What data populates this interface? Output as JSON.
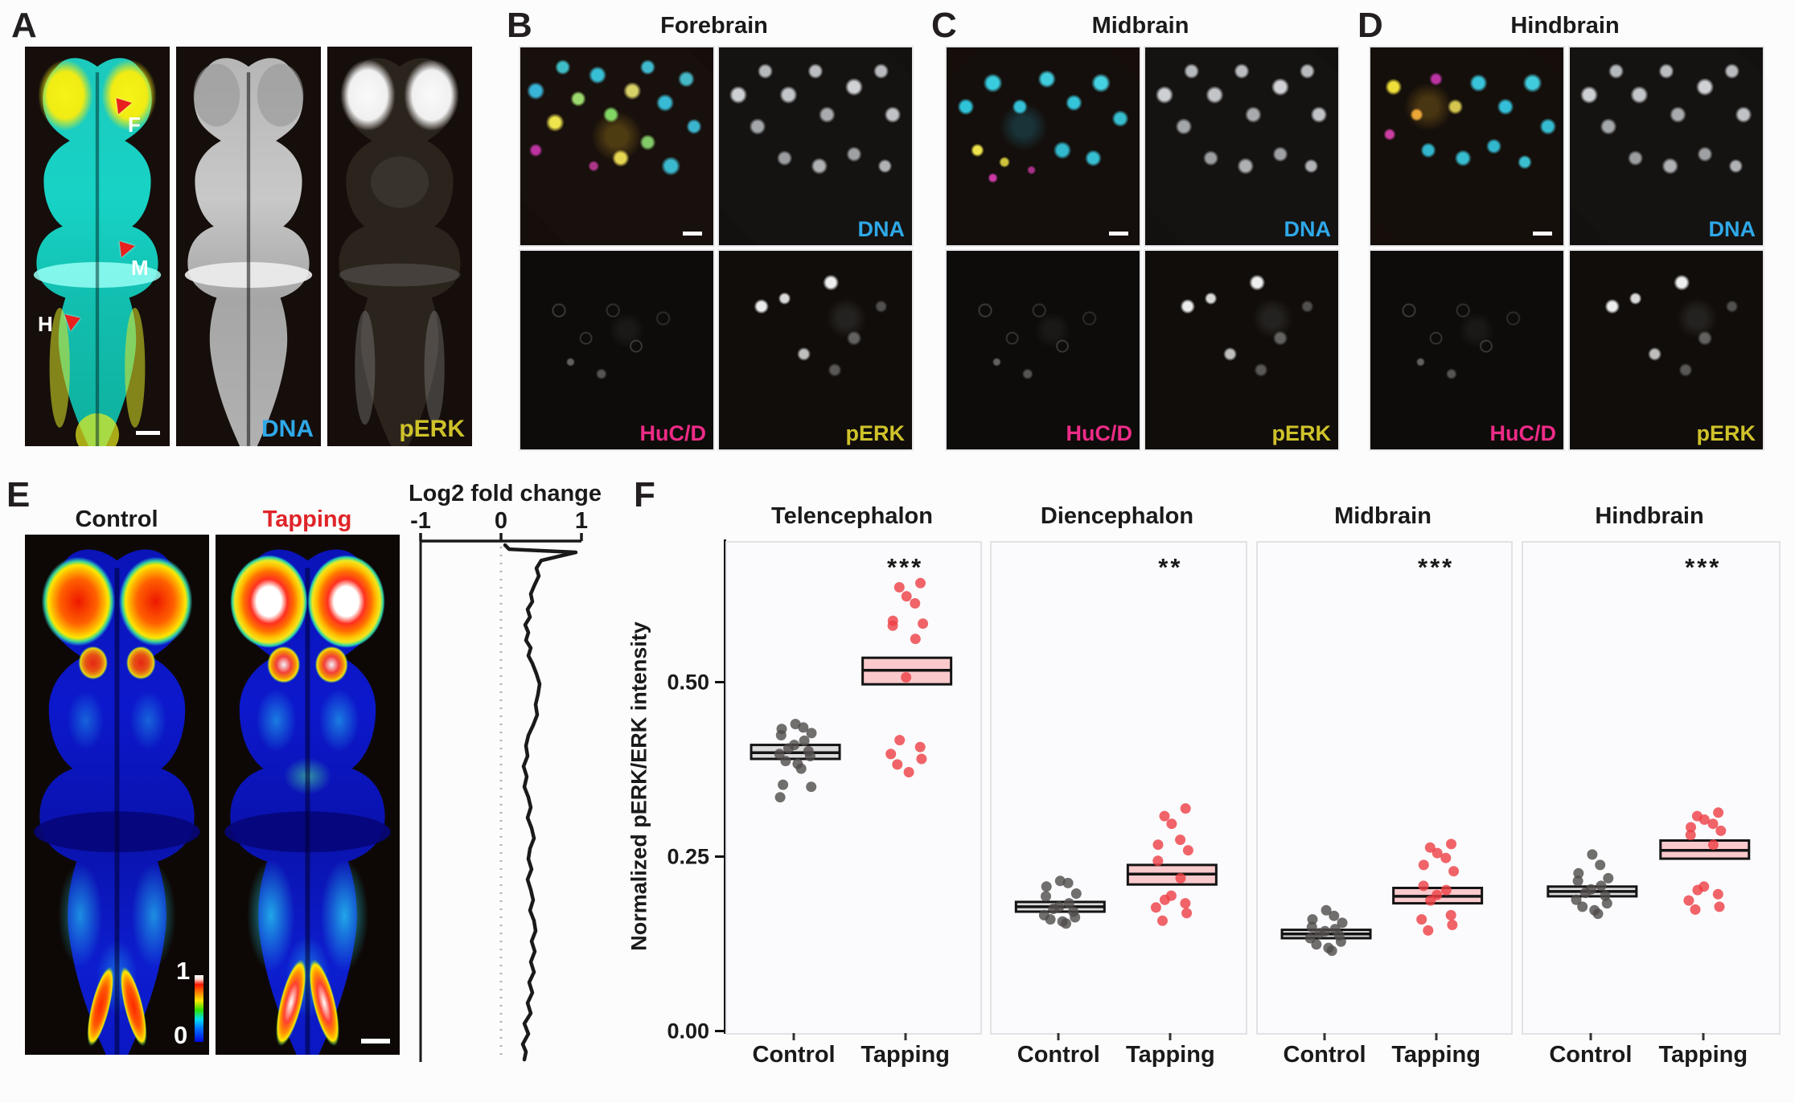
{
  "colors": {
    "tapping_red": "#e02428",
    "dna_cyan": "#2fa8e8",
    "hucd_magenta": "#ee2b87",
    "perk_yellow": "#cfc22a",
    "control_box_fill": "#dcdcdc",
    "control_point": "#4f4b4a",
    "tapping_box_fill": "#f9c9cc",
    "tapping_point": "#ee3e44",
    "box_border": "#141414",
    "annotation_arrow_red": "#e8201e"
  },
  "panel_a": {
    "label": "A",
    "annotations": {
      "f": "F",
      "m": "M",
      "h": "H"
    },
    "dna_label": "DNA",
    "perk_label": "pERK"
  },
  "panel_b": {
    "label": "B",
    "title": "Forebrain",
    "dna_label": "DNA",
    "hucd_label": "HuC/D",
    "perk_label": "pERK"
  },
  "panel_c": {
    "label": "C",
    "title": "Midbrain",
    "dna_label": "DNA",
    "hucd_label": "HuC/D",
    "perk_label": "pERK"
  },
  "panel_d": {
    "label": "D",
    "title": "Hindbrain",
    "dna_label": "DNA",
    "hucd_label": "HuC/D",
    "perk_label": "pERK"
  },
  "panel_e": {
    "label": "E",
    "control_label": "Control",
    "tapping_label": "Tapping",
    "colorbar_max": "1",
    "colorbar_min": "0",
    "log2_title": "Log2 fold change",
    "log2_ticks": [
      "-1",
      "0",
      "1"
    ]
  },
  "panel_f": {
    "label": "F",
    "y_axis_label": "Normalized pERK/ERK intensity",
    "y_ticks": [
      "0.50",
      "0.25",
      "0.00"
    ],
    "x_tick_labels": [
      "Control",
      "Tapping"
    ]
  },
  "chart_data": [
    {
      "type": "line",
      "title": "Log2 fold change",
      "orientation": "vertical-profile-along-brain-axis",
      "xlim": [
        -1,
        1
      ],
      "x_ticks": [
        -1,
        0,
        1
      ],
      "zero_reference_line": "dashed",
      "points": [
        [
          0,
          0.05
        ],
        [
          0.008,
          0.1
        ],
        [
          0.014,
          0.93
        ],
        [
          0.03,
          0.5
        ],
        [
          0.045,
          0.44
        ],
        [
          0.06,
          0.47
        ],
        [
          0.08,
          0.41
        ],
        [
          0.095,
          0.37
        ],
        [
          0.11,
          0.39
        ],
        [
          0.125,
          0.33
        ],
        [
          0.14,
          0.36
        ],
        [
          0.155,
          0.3
        ],
        [
          0.17,
          0.34
        ],
        [
          0.185,
          0.31
        ],
        [
          0.2,
          0.37
        ],
        [
          0.215,
          0.34
        ],
        [
          0.23,
          0.39
        ],
        [
          0.25,
          0.44
        ],
        [
          0.27,
          0.48
        ],
        [
          0.29,
          0.46
        ],
        [
          0.31,
          0.43
        ],
        [
          0.33,
          0.45
        ],
        [
          0.35,
          0.4
        ],
        [
          0.37,
          0.34
        ],
        [
          0.39,
          0.31
        ],
        [
          0.41,
          0.33
        ],
        [
          0.43,
          0.28
        ],
        [
          0.45,
          0.32
        ],
        [
          0.47,
          0.29
        ],
        [
          0.49,
          0.34
        ],
        [
          0.51,
          0.37
        ],
        [
          0.53,
          0.33
        ],
        [
          0.55,
          0.38
        ],
        [
          0.57,
          0.41
        ],
        [
          0.59,
          0.36
        ],
        [
          0.61,
          0.34
        ],
        [
          0.63,
          0.38
        ],
        [
          0.65,
          0.33
        ],
        [
          0.67,
          0.37
        ],
        [
          0.69,
          0.4
        ],
        [
          0.71,
          0.36
        ],
        [
          0.73,
          0.41
        ],
        [
          0.75,
          0.43
        ],
        [
          0.77,
          0.38
        ],
        [
          0.79,
          0.42
        ],
        [
          0.81,
          0.37
        ],
        [
          0.83,
          0.41
        ],
        [
          0.85,
          0.35
        ],
        [
          0.87,
          0.39
        ],
        [
          0.89,
          0.33
        ],
        [
          0.91,
          0.37
        ],
        [
          0.93,
          0.29
        ],
        [
          0.95,
          0.34
        ],
        [
          0.97,
          0.27
        ],
        [
          0.985,
          0.31
        ],
        [
          1,
          0.29
        ]
      ]
    },
    {
      "type": "box-scatter",
      "ylabel": "Normalized pERK/ERK intensity",
      "ylim": [
        0,
        0.7
      ],
      "y_ticks": [
        0.0,
        0.25,
        0.5
      ],
      "categories": [
        "Control",
        "Tapping"
      ],
      "subplots": [
        {
          "title": "Telencephalon",
          "significance": "***",
          "control": {
            "q1": 0.393,
            "median": 0.402,
            "q3": 0.413,
            "points": [
              0.443,
              0.438,
              0.436,
              0.43,
              0.427,
              0.419,
              0.413,
              0.408,
              0.404,
              0.4,
              0.397,
              0.39,
              0.386,
              0.379,
              0.356,
              0.353,
              0.338
            ]
          },
          "tapping": {
            "q1": 0.5,
            "median": 0.52,
            "q3": 0.538,
            "points": [
              0.645,
              0.639,
              0.626,
              0.616,
              0.591,
              0.587,
              0.584,
              0.565,
              0.51,
              0.42,
              0.41,
              0.4,
              0.393,
              0.385,
              0.374
            ]
          }
        },
        {
          "title": "Diencephalon",
          "significance": "**",
          "control": {
            "q1": 0.174,
            "median": 0.181,
            "q3": 0.188,
            "points": [
              0.218,
              0.215,
              0.21,
              0.2,
              0.196,
              0.186,
              0.181,
              0.178,
              0.174,
              0.169,
              0.166,
              0.163,
              0.16,
              0.157
            ]
          },
          "tapping": {
            "q1": 0.213,
            "median": 0.228,
            "q3": 0.241,
            "points": [
              0.322,
              0.311,
              0.3,
              0.277,
              0.27,
              0.262,
              0.247,
              0.222,
              0.197,
              0.191,
              0.186,
              0.18,
              0.172,
              0.161
            ]
          }
        },
        {
          "title": "Midbrain",
          "significance": "***",
          "control": {
            "q1": 0.136,
            "median": 0.142,
            "q3": 0.148,
            "points": [
              0.176,
              0.168,
              0.163,
              0.158,
              0.152,
              0.149,
              0.146,
              0.143,
              0.14,
              0.136,
              0.131,
              0.127,
              0.122,
              0.118
            ]
          },
          "tapping": {
            "q1": 0.186,
            "median": 0.196,
            "q3": 0.208,
            "points": [
              0.271,
              0.266,
              0.258,
              0.251,
              0.241,
              0.232,
              0.211,
              0.205,
              0.198,
              0.19,
              0.169,
              0.163,
              0.155,
              0.147
            ]
          }
        },
        {
          "title": "Hindbrain",
          "significance": "***",
          "control": {
            "q1": 0.196,
            "median": 0.203,
            "q3": 0.21,
            "points": [
              0.256,
              0.241,
              0.229,
              0.222,
              0.218,
              0.211,
              0.206,
              0.201,
              0.197,
              0.191,
              0.186,
              0.181,
              0.176,
              0.171
            ]
          },
          "tapping": {
            "q1": 0.25,
            "median": 0.262,
            "q3": 0.276,
            "points": [
              0.316,
              0.311,
              0.306,
              0.3,
              0.295,
              0.29,
              0.284,
              0.27,
              0.21,
              0.205,
              0.199,
              0.19,
              0.181,
              0.177
            ]
          }
        }
      ]
    }
  ]
}
